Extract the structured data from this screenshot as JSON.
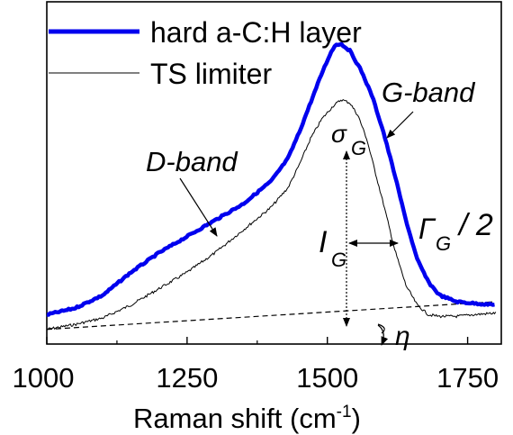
{
  "chart_data": {
    "type": "line",
    "xlabel_main": "Raman shift (cm",
    "xlabel_sup": "-1",
    "xlabel_close": ")",
    "xlim": [
      1000,
      1810
    ],
    "x_ticks": [
      1000,
      1250,
      1500,
      1750
    ],
    "x_tick_labels": [
      "1000",
      "1250",
      "1500",
      "1750"
    ],
    "y_ticks_shown": false,
    "legend_position": "top-left",
    "series": [
      {
        "name": "hard a-C:H layer",
        "color": "#0000ee",
        "style": "thick",
        "x": [
          1000,
          1050,
          1100,
          1150,
          1200,
          1250,
          1300,
          1350,
          1400,
          1430,
          1450,
          1470,
          1490,
          1505,
          1515,
          1525,
          1540,
          1560,
          1580,
          1600,
          1620,
          1640,
          1660,
          1680,
          1700,
          1730,
          1760,
          1800
        ],
        "y": [
          0.04,
          0.06,
          0.1,
          0.17,
          0.23,
          0.28,
          0.33,
          0.38,
          0.45,
          0.52,
          0.6,
          0.69,
          0.78,
          0.84,
          0.87,
          0.87,
          0.85,
          0.79,
          0.71,
          0.6,
          0.47,
          0.33,
          0.21,
          0.14,
          0.1,
          0.08,
          0.075,
          0.07
        ]
      },
      {
        "name": "TS limiter",
        "color": "#000000",
        "style": "thin",
        "x": [
          1000,
          1050,
          1100,
          1150,
          1200,
          1250,
          1300,
          1350,
          1400,
          1430,
          1450,
          1470,
          1490,
          1510,
          1525,
          1540,
          1555,
          1570,
          1585,
          1600,
          1620,
          1640,
          1660,
          1680,
          1700,
          1730,
          1760,
          1800
        ],
        "y": [
          -0.005,
          0.01,
          0.03,
          0.07,
          0.12,
          0.17,
          0.23,
          0.3,
          0.37,
          0.43,
          0.5,
          0.58,
          0.64,
          0.68,
          0.7,
          0.69,
          0.65,
          0.58,
          0.48,
          0.38,
          0.24,
          0.13,
          0.07,
          0.04,
          0.035,
          0.035,
          0.04,
          0.045
        ]
      }
    ],
    "baseline": {
      "x": [
        1000,
        1800
      ],
      "y": [
        -0.005,
        0.08
      ]
    },
    "annotations": {
      "g_band": "G-band",
      "d_band": "D-band",
      "sigma": "σ",
      "sigma_sub": "G",
      "i": "I",
      "i_sub": "G",
      "gamma": "Γ",
      "gamma_sub": "G",
      "gamma_suffix": "/ 2",
      "eta": "η"
    }
  }
}
